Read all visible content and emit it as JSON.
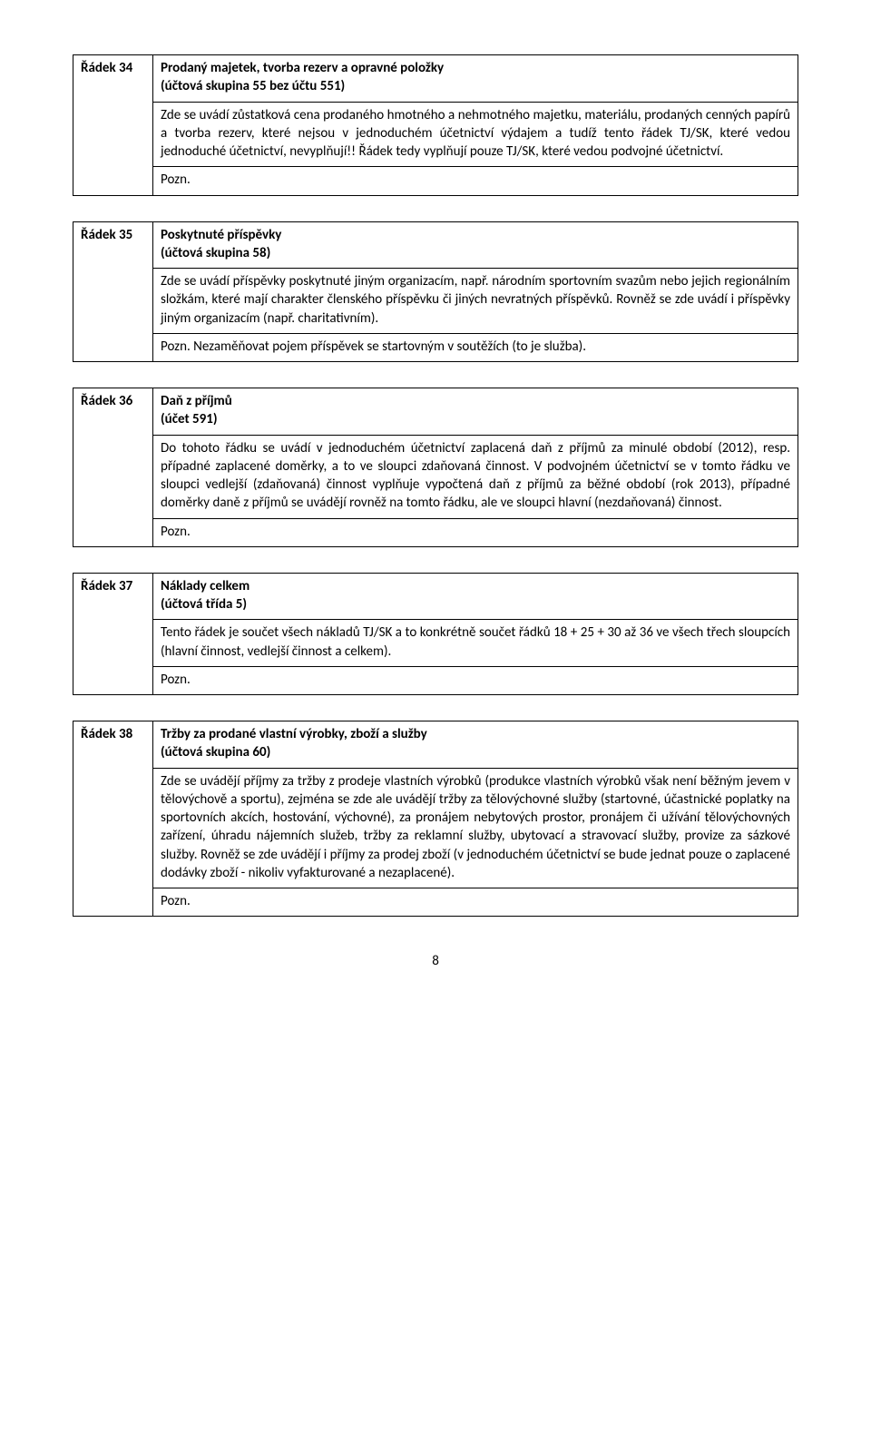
{
  "rows": [
    {
      "label": "Řádek 34",
      "title": "Prodaný majetek, tvorba rezerv a opravné položky",
      "subtitle": "(účtová skupina 55 bez účtu 551)",
      "body": "Zde se uvádí zůstatková cena prodaného hmotného a nehmotného majetku, materiálu, prodaných cenných papírů a tvorba rezerv, které nejsou v jednoduchém účetnictví výdajem a tudíž tento řádek TJ/SK, které vedou jednoduché účetnictví, nevyplňují!! Řádek tedy vyplňují pouze TJ/SK, které vedou podvojné účetnictví.",
      "note": "Pozn."
    },
    {
      "label": "Řádek 35",
      "title": "Poskytnuté příspěvky",
      "subtitle": "(účtová skupina 58)",
      "body": "Zde se uvádí příspěvky poskytnuté jiným organizacím, např. národním sportovním svazům nebo jejich regionálním složkám, které mají charakter členského příspěvku či jiných nevratných příspěvků. Rovněž se zde uvádí i příspěvky jiným organizacím (např. charitativním).",
      "note": "Pozn. Nezaměňovat pojem příspěvek se startovným v soutěžích (to je služba)."
    },
    {
      "label": "Řádek 36",
      "title": "Daň z příjmů",
      "subtitle": "(účet 591)",
      "body": "Do tohoto řádku se uvádí v jednoduchém účetnictví zaplacená daň z příjmů za minulé období (2012), resp. případné zaplacené doměrky, a to ve sloupci zdaňovaná činnost. V podvojném účetnictví se v tomto řádku ve sloupci vedlejší (zdaňovaná) činnost vyplňuje vypočtená daň z příjmů za běžné období (rok 2013), případné doměrky daně z příjmů se uvádějí rovněž na tomto řádku, ale ve sloupci hlavní (nezdaňovaná) činnost.",
      "note": "Pozn."
    },
    {
      "label": "Řádek 37",
      "title": "Náklady celkem",
      "subtitle": "(účtová třída 5)",
      "body": "Tento řádek je součet všech nákladů TJ/SK a to konkrétně součet řádků 18 + 25 + 30 až 36 ve všech třech sloupcích (hlavní činnost, vedlejší činnost a celkem).",
      "note": "Pozn."
    },
    {
      "label": "Řádek 38",
      "title": "Tržby za prodané vlastní výrobky, zboží a služby",
      "subtitle": "(účtová skupina 60)",
      "body": "Zde se uvádějí příjmy za tržby z prodeje vlastních výrobků (produkce vlastních výrobků však není běžným jevem v tělovýchově a sportu), zejména se zde ale uvádějí tržby za tělovýchovné služby (startovné, účastnické poplatky na sportovních akcích, hostování, výchovné), za pronájem nebytových prostor, pronájem či užívání tělovýchovných zařízení, úhradu nájemních služeb, tržby za reklamní služby, ubytovací a stravovací služby, provize za sázkové služby. Rovněž se zde uvádějí i příjmy za prodej zboží (v jednoduchém účetnictví se bude jednat pouze o zaplacené dodávky zboží - nikoliv vyfakturované a nezaplacené).",
      "note": "Pozn."
    }
  ],
  "page_number": "8"
}
